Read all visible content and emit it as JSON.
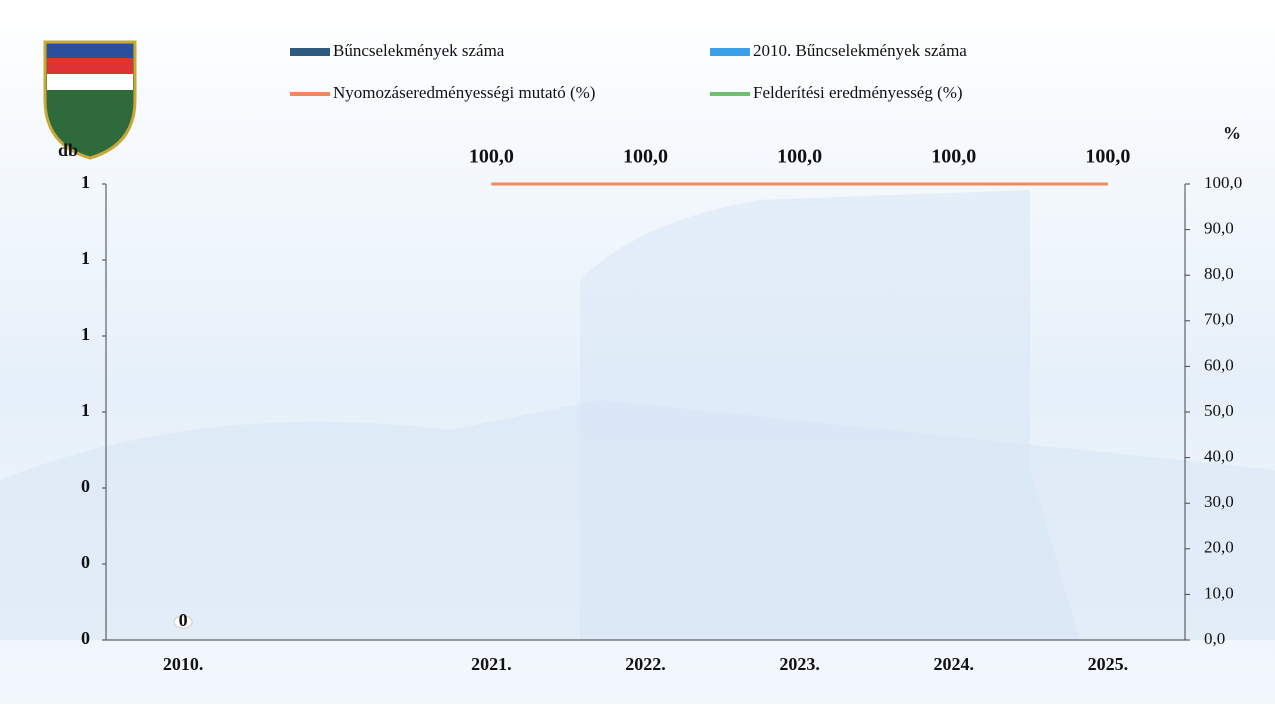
{
  "chart_data": {
    "type": "bar",
    "categories": [
      "2010.",
      null,
      "2021.",
      "2022.",
      "2023.",
      "2024.",
      "2025."
    ],
    "y_axis_label": "db",
    "y2_axis_label": "%",
    "ylim": [
      0,
      1.2
    ],
    "yticks": [
      {
        "value": 0,
        "label": "0"
      },
      {
        "value": 0.2,
        "label": "0"
      },
      {
        "value": 0.4,
        "label": "0"
      },
      {
        "value": 0.6,
        "label": "1"
      },
      {
        "value": 0.8,
        "label": "1"
      },
      {
        "value": 1.0,
        "label": "1"
      },
      {
        "value": 1.2,
        "label": "1"
      }
    ],
    "y2lim": [
      0,
      100
    ],
    "y2ticks": [
      {
        "value": 0,
        "label": "0,0"
      },
      {
        "value": 10,
        "label": "10,0"
      },
      {
        "value": 20,
        "label": "20,0"
      },
      {
        "value": 30,
        "label": "30,0"
      },
      {
        "value": 40,
        "label": "40,0"
      },
      {
        "value": 50,
        "label": "50,0"
      },
      {
        "value": 60,
        "label": "60,0"
      },
      {
        "value": 70,
        "label": "70,0"
      },
      {
        "value": 80,
        "label": "80,0"
      },
      {
        "value": 90,
        "label": "90,0"
      },
      {
        "value": 100,
        "label": "100,0"
      }
    ],
    "series": [
      {
        "name": "Bűncselekmények száma",
        "color": "#2e5a80",
        "kind": "bar",
        "values": [
          null,
          null,
          0,
          0,
          0,
          0,
          0
        ]
      },
      {
        "name": "2010. Bűncselekmények száma",
        "color": "#3aa0e8",
        "kind": "bar",
        "values": [
          0,
          null,
          null,
          null,
          null,
          null,
          null
        ],
        "value_labels": [
          "0",
          null,
          null,
          null,
          null,
          null,
          null
        ]
      },
      {
        "name": "Nyomozáseredményességi mutató (%)",
        "color": "#f08a5d",
        "kind": "line",
        "axis": "y2",
        "values": [
          null,
          null,
          100,
          100,
          100,
          100,
          100
        ],
        "value_labels": [
          null,
          null,
          "100,0",
          "100,0",
          "100,0",
          "100,0",
          "100,0"
        ]
      },
      {
        "name": "Felderítési eredményesség (%)",
        "color": "#6cc070",
        "kind": "line",
        "axis": "y2",
        "values": [
          null,
          null,
          null,
          null,
          null,
          null,
          null
        ]
      }
    ]
  }
}
